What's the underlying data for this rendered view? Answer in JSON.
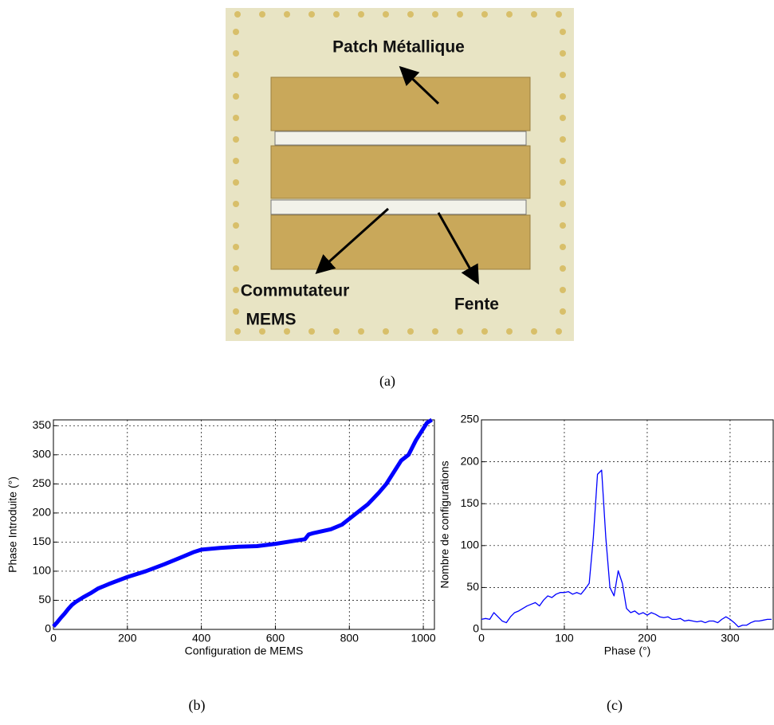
{
  "photo": {
    "patch_label": "Patch Métallique",
    "switch_label": [
      "Commutateur",
      "MEMS"
    ],
    "slot_label": "Fente"
  },
  "captions": {
    "a": "(a)",
    "b": "(b)",
    "c": "(c)"
  },
  "chart_data": [
    {
      "type": "line",
      "xlabel": "Configuration de MEMS",
      "ylabel": "Phase Introduite (°)",
      "color": "#0000ff",
      "grid": true,
      "x": [
        0,
        10,
        20,
        30,
        40,
        50,
        60,
        80,
        100,
        120,
        150,
        200,
        250,
        300,
        350,
        380,
        400,
        450,
        500,
        550,
        600,
        650,
        680,
        690,
        700,
        750,
        780,
        800,
        850,
        880,
        900,
        920,
        940,
        960,
        980,
        1000,
        1010,
        1023
      ],
      "values": [
        5,
        12,
        20,
        27,
        35,
        42,
        47,
        55,
        62,
        70,
        78,
        90,
        100,
        112,
        125,
        133,
        137,
        140,
        142,
        143,
        147,
        152,
        155,
        163,
        165,
        172,
        180,
        190,
        215,
        235,
        250,
        270,
        290,
        300,
        325,
        345,
        355,
        360
      ],
      "xlim": [
        0,
        1030
      ],
      "ylim": [
        0,
        360
      ],
      "xticks": [
        0,
        200,
        400,
        600,
        800,
        1000
      ],
      "yticks": [
        0,
        50,
        100,
        150,
        200,
        250,
        300,
        350
      ]
    },
    {
      "type": "line",
      "xlabel": "Phase (°)",
      "ylabel": "Nombre de configurations",
      "color": "#0000ff",
      "grid": true,
      "x": [
        0,
        5,
        10,
        15,
        20,
        25,
        30,
        35,
        40,
        45,
        50,
        55,
        60,
        65,
        70,
        75,
        80,
        85,
        90,
        95,
        100,
        105,
        110,
        115,
        120,
        125,
        130,
        135,
        140,
        145,
        150,
        155,
        160,
        165,
        170,
        175,
        180,
        185,
        190,
        195,
        200,
        205,
        210,
        215,
        220,
        225,
        230,
        235,
        240,
        245,
        250,
        255,
        260,
        265,
        270,
        275,
        280,
        285,
        290,
        295,
        300,
        305,
        310,
        315,
        320,
        325,
        330,
        335,
        340,
        345,
        350
      ],
      "values": [
        12,
        13,
        12,
        20,
        15,
        10,
        8,
        15,
        20,
        22,
        25,
        28,
        30,
        32,
        28,
        35,
        40,
        38,
        42,
        44,
        44,
        45,
        42,
        44,
        42,
        48,
        55,
        110,
        185,
        190,
        110,
        50,
        40,
        70,
        55,
        25,
        20,
        22,
        18,
        20,
        17,
        20,
        18,
        15,
        14,
        15,
        12,
        12,
        13,
        10,
        11,
        10,
        9,
        10,
        8,
        10,
        10,
        8,
        12,
        15,
        12,
        8,
        3,
        5,
        5,
        8,
        10,
        10,
        11,
        12,
        12
      ],
      "xlim": [
        0,
        352
      ],
      "ylim": [
        0,
        250
      ],
      "xticks": [
        0,
        100,
        200,
        300
      ],
      "yticks": [
        0,
        50,
        100,
        150,
        200,
        250
      ]
    }
  ]
}
